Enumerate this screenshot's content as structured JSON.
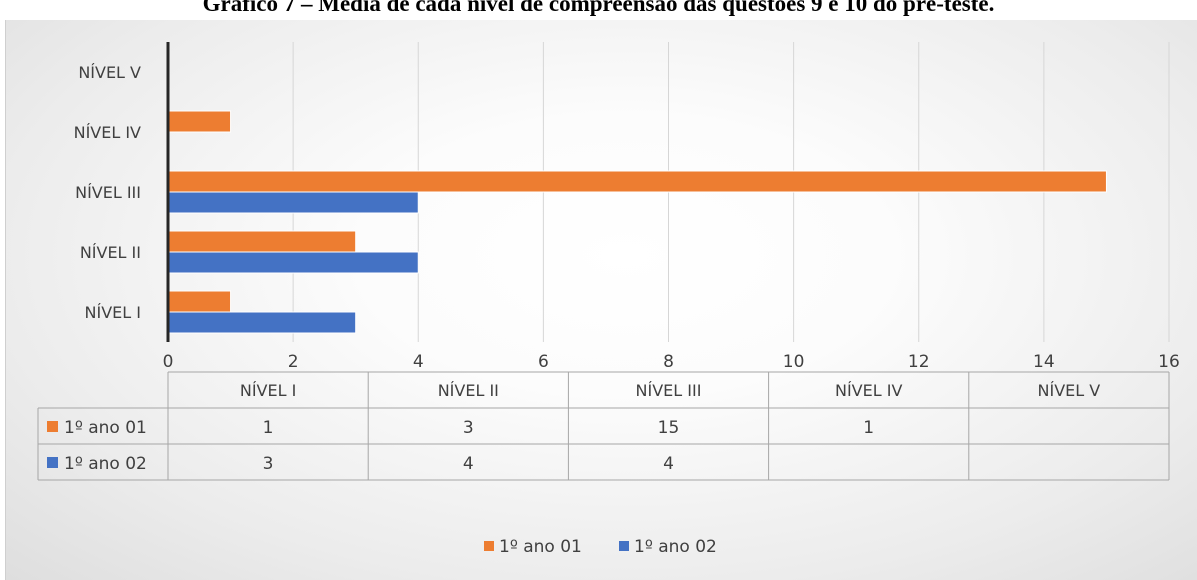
{
  "title": "Gráfico 7 – Média de cada nível de compreensão das questões 9 e 10 do pré-teste.",
  "chart_data": {
    "type": "bar",
    "orientation": "horizontal",
    "categories": [
      "NÍVEL I",
      "NÍVEL II",
      "NÍVEL III",
      "NÍVEL IV",
      "NÍVEL V"
    ],
    "series": [
      {
        "name": "1º ano 01",
        "color": "#ED7D31",
        "values": [
          1,
          3,
          15,
          1,
          null
        ]
      },
      {
        "name": "1º ano 02",
        "color": "#4472C4",
        "values": [
          3,
          4,
          4,
          null,
          null
        ]
      }
    ],
    "xlim": [
      0,
      16
    ],
    "xticks": [
      0,
      2,
      4,
      6,
      8,
      10,
      12,
      14,
      16
    ],
    "grid": true,
    "legend_position": "bottom",
    "data_table": {
      "header": [
        "NÍVEL I",
        "NÍVEL II",
        "NÍVEL III",
        "NÍVEL IV",
        "NÍVEL V"
      ],
      "rows": [
        {
          "label": "1º ano 01",
          "cells": [
            "1",
            "3",
            "15",
            "1",
            ""
          ]
        },
        {
          "label": "1º ano 02",
          "cells": [
            "3",
            "4",
            "4",
            "",
            ""
          ]
        }
      ]
    }
  }
}
